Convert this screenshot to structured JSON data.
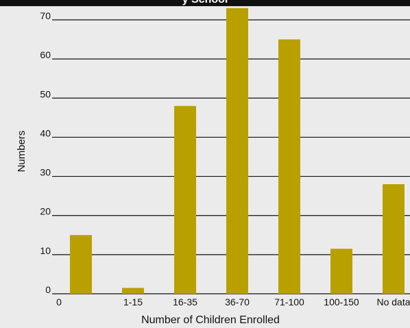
{
  "title": "y School",
  "chart_data": {
    "type": "bar",
    "title": "y School",
    "xlabel": "Number of Children Enrolled",
    "ylabel": "Numbers",
    "ylim": [
      0,
      70
    ],
    "yticks": [
      0,
      10,
      20,
      30,
      40,
      50,
      60,
      70
    ],
    "grid": true,
    "categories": [
      "0",
      "1-15",
      "16-35",
      "36-70",
      "71-100",
      "100-150",
      "No data"
    ],
    "values": [
      15,
      1.5,
      48,
      73,
      65,
      11.5,
      28
    ],
    "bar_color": "#b8a000",
    "background_color": "#ebebeb",
    "gridline_color": "#111111"
  }
}
